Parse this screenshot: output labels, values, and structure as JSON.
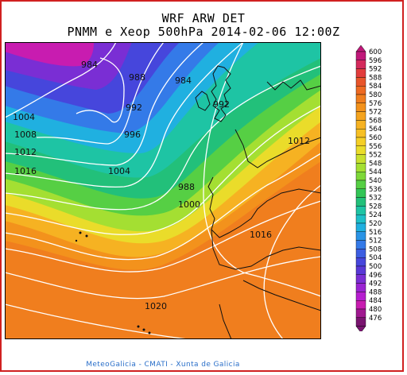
{
  "header": {
    "title": "WRF ARW DET",
    "subtitle": "PNMM e Xeop 500hPa 2014-02-06 12:00Z"
  },
  "footer": {
    "credit": "MeteoGalicia - CMATI - Xunta de Galicia"
  },
  "colorbar": {
    "levels": [
      "600",
      "596",
      "592",
      "588",
      "584",
      "580",
      "576",
      "572",
      "568",
      "564",
      "560",
      "556",
      "552",
      "548",
      "544",
      "540",
      "536",
      "532",
      "528",
      "524",
      "520",
      "516",
      "512",
      "508",
      "504",
      "500",
      "496",
      "492",
      "488",
      "484",
      "480",
      "476"
    ],
    "colors": [
      "#c0187a",
      "#d42a5c",
      "#e23c3c",
      "#e8552a",
      "#ee6a22",
      "#f07e1e",
      "#f3921c",
      "#f5a41e",
      "#f6b222",
      "#f7c024",
      "#f5cf26",
      "#eadc2a",
      "#c9e02e",
      "#a4df32",
      "#7ed839",
      "#56cf44",
      "#32c556",
      "#22c07a",
      "#1ec4a4",
      "#1ec0c8",
      "#20b0e0",
      "#2a94e6",
      "#347ae8",
      "#3c5ee2",
      "#4646dc",
      "#5838d6",
      "#7a2ed4",
      "#9a24d2",
      "#b61ed0",
      "#c81cb0",
      "#a01890",
      "#7a1470"
    ]
  },
  "map": {
    "contour_labels": [
      {
        "text": "984",
        "id": "l1"
      },
      {
        "text": "988",
        "id": "l2"
      },
      {
        "text": "984",
        "id": "l3"
      },
      {
        "text": "992",
        "id": "l4"
      },
      {
        "text": "992",
        "id": "l5"
      },
      {
        "text": "996",
        "id": "l6"
      },
      {
        "text": "1004",
        "id": "l7"
      },
      {
        "text": "1008",
        "id": "l8"
      },
      {
        "text": "1012",
        "id": "l9"
      },
      {
        "text": "1016",
        "id": "l10"
      },
      {
        "text": "1004",
        "id": "l11"
      },
      {
        "text": "988",
        "id": "l12"
      },
      {
        "text": "1000",
        "id": "l13"
      },
      {
        "text": "1012",
        "id": "l14"
      },
      {
        "text": "1016",
        "id": "l15"
      },
      {
        "text": "1020",
        "id": "l16"
      }
    ]
  }
}
